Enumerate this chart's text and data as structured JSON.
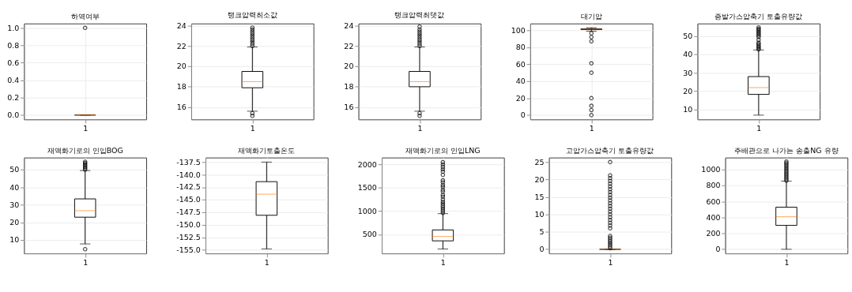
{
  "chart_data": [
    {
      "type": "box",
      "title": "하역여부",
      "categories": [
        "1"
      ],
      "ylim": [
        -0.05,
        1.05
      ],
      "yticks": [
        {
          "value": 0,
          "label": "0.0"
        },
        0.2,
        0.4,
        0.6,
        0.8,
        {
          "value": 1,
          "label": "1.0"
        }
      ],
      "grid": true,
      "boxes": [
        {
          "low": 0,
          "q1": 0,
          "median": 0,
          "q3": 0,
          "high": 0,
          "outliers": [
            1
          ]
        }
      ]
    },
    {
      "type": "box",
      "title": "탱크압력최소값",
      "categories": [
        "1"
      ],
      "ylim": [
        14.8,
        24.2
      ],
      "yticks": [
        16,
        18,
        20,
        22,
        24
      ],
      "grid": true,
      "boxes": [
        {
          "low": 15.6,
          "q1": 17.9,
          "median": 18.5,
          "q3": 19.5,
          "high": 21.9,
          "outliers": [
            22.0,
            22.2,
            22.4,
            22.6,
            22.8,
            23.0,
            23.2,
            23.4,
            23.6,
            23.8,
            15.4,
            15.15
          ]
        }
      ]
    },
    {
      "type": "box",
      "title": "탱크압력최댓값",
      "categories": [
        "1"
      ],
      "ylim": [
        14.8,
        24.2
      ],
      "yticks": [
        16,
        18,
        20,
        22,
        24
      ],
      "grid": true,
      "boxes": [
        {
          "low": 15.6,
          "q1": 18.0,
          "median": 18.5,
          "q3": 19.5,
          "high": 21.9,
          "outliers": [
            22.0,
            22.2,
            22.4,
            22.6,
            22.8,
            23.0,
            23.2,
            23.4,
            23.6,
            23.9,
            15.4,
            15.15
          ]
        }
      ]
    },
    {
      "type": "box",
      "title": "대기압",
      "categories": [
        "1"
      ],
      "ylim": [
        -5,
        108
      ],
      "yticks": [
        0,
        20,
        40,
        60,
        80,
        100
      ],
      "grid": true,
      "boxes": [
        {
          "low": 99,
          "q1": 100.8,
          "median": 101.3,
          "q3": 101.8,
          "high": 103,
          "outliers": [
            96.5,
            92,
            87,
            61,
            50,
            20,
            11,
            6,
            0
          ]
        }
      ]
    },
    {
      "type": "box",
      "title": "증발가스압축기 토출유량값",
      "categories": [
        "1"
      ],
      "ylim": [
        4.7,
        56.9
      ],
      "yticks": [
        10,
        20,
        30,
        40,
        50
      ],
      "grid": true,
      "boxes": [
        {
          "low": 7,
          "q1": 18.3,
          "median": 22,
          "q3": 28,
          "high": 42.5,
          "outliers": [
            42.8,
            43.5,
            44.2,
            45,
            45.8,
            46.5,
            48,
            49.5,
            50.3,
            51,
            51.8,
            52.5,
            53.3,
            54,
            54.8
          ]
        }
      ]
    },
    {
      "type": "box",
      "title": "재액화기로의 인입BOG",
      "categories": [
        "1"
      ],
      "ylim": [
        2.4,
        56.9
      ],
      "yticks": [
        10,
        20,
        30,
        40,
        50
      ],
      "grid": true,
      "boxes": [
        {
          "low": 7.8,
          "q1": 23,
          "median": 26.7,
          "q3": 33.4,
          "high": 49.5,
          "outliers": [
            50,
            50.8,
            51.5,
            52.3,
            53,
            53.8,
            54.5,
            4.8
          ]
        }
      ]
    },
    {
      "type": "box",
      "title": "재액화기토출온도",
      "categories": [
        "1"
      ],
      "ylim": [
        -155.7,
        -136.6
      ],
      "yticks": [
        {
          "value": -155,
          "label": "-155.0"
        },
        -152.5,
        {
          "value": -150,
          "label": "-150.0"
        },
        -147.5,
        {
          "value": -145,
          "label": "-145.0"
        },
        -142.5,
        {
          "value": -140,
          "label": "-140.0"
        },
        -137.5
      ],
      "grid": true,
      "boxes": [
        {
          "low": -154.8,
          "q1": -148.1,
          "median": -143.9,
          "q3": -141.4,
          "high": -137.5
        }
      ]
    },
    {
      "type": "box",
      "title": "재액화기로의 인입LNG",
      "categories": [
        "1"
      ],
      "ylim": [
        90,
        2151
      ],
      "yticks": [
        500,
        {
          "value": 1000,
          "label": "1000"
        },
        {
          "value": 1500,
          "label": "1500"
        },
        {
          "value": 2000,
          "label": "2000"
        }
      ],
      "grid": true,
      "boxes": [
        {
          "low": 185,
          "q1": 360,
          "median": 455,
          "q3": 595,
          "high": 945,
          "outliers": [
            960,
            1000,
            1040,
            1080,
            1120,
            1160,
            1200,
            1250,
            1310,
            1350,
            1420,
            1460,
            1520,
            1560,
            1620,
            1660,
            1780,
            1850,
            1900,
            1950,
            2000,
            2050
          ]
        }
      ]
    },
    {
      "type": "box",
      "title": "고압가스압축기 토출유량값",
      "categories": [
        "1"
      ],
      "ylim": [
        -1.2,
        26.3
      ],
      "yticks": [
        0,
        5,
        10,
        15,
        20,
        25
      ],
      "grid": true,
      "boxes": [
        {
          "low": 0,
          "q1": 0,
          "median": 0,
          "q3": 0,
          "high": 0,
          "outliers": [
            0.3,
            0.8,
            1.3,
            1.8,
            2.3,
            2.8,
            3.3,
            3.8,
            6,
            6.8,
            7.6,
            8.4,
            9.2,
            10,
            10.8,
            11.6,
            12.4,
            13.2,
            14,
            14.8,
            15.6,
            16.4,
            17.2,
            18,
            18.8,
            19.6,
            20.4,
            21.2,
            25
          ]
        }
      ]
    },
    {
      "type": "box",
      "title": "주배관으로 나가는 송출NG 유량",
      "categories": [
        "1"
      ],
      "ylim": [
        -52,
        1151
      ],
      "yticks": [
        0,
        200,
        400,
        600,
        800,
        1000
      ],
      "grid": true,
      "boxes": [
        {
          "low": 0,
          "q1": 300,
          "median": 408,
          "q3": 528,
          "high": 855,
          "outliers": [
            860,
            880,
            900,
            920,
            940,
            960,
            980,
            1000,
            1020,
            1040,
            1060,
            1080,
            1100
          ]
        }
      ]
    }
  ]
}
